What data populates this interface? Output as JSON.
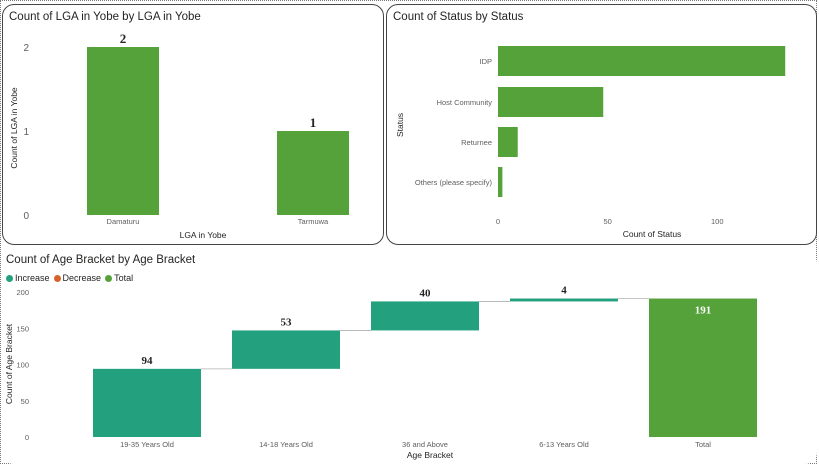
{
  "chart_data": [
    {
      "type": "bar",
      "title": "Count of LGA in Yobe by LGA in Yobe",
      "xlabel": "LGA in Yobe",
      "ylabel": "Count of LGA in Yobe",
      "categories": [
        "Damaturu",
        "Tarmuwa"
      ],
      "values": [
        2,
        1
      ],
      "data_labels": [
        "2",
        "1"
      ],
      "yticks": [
        "0",
        "1",
        "2"
      ],
      "ylim": [
        0,
        2
      ],
      "color": "#56a23a"
    },
    {
      "type": "bar",
      "orientation": "horizontal",
      "title": "Count of Status by Status",
      "xlabel": "Count of Status",
      "ylabel": "Status",
      "categories": [
        "IDP",
        "Host Community",
        "Returnee",
        "Others (please specify)"
      ],
      "values": [
        131,
        48,
        9,
        2
      ],
      "xticks": [
        "0",
        "50",
        "100"
      ],
      "xlim": [
        0,
        135
      ],
      "color": "#56a23a"
    },
    {
      "type": "waterfall",
      "title": "Count of Age Bracket by Age Bracket",
      "xlabel": "Age Bracket",
      "ylabel": "Count of Age Bracket",
      "legend": [
        {
          "name": "Increase",
          "color": "#23a17e"
        },
        {
          "name": "Decrease",
          "color": "#d9622b"
        },
        {
          "name": "Total",
          "color": "#56a23a"
        }
      ],
      "categories": [
        "19-35 Years Old",
        "14-18 Years Old",
        "36 and Above",
        "6-13 Years Old",
        "Total"
      ],
      "values": [
        94,
        53,
        40,
        4,
        191
      ],
      "kinds": [
        "increase",
        "increase",
        "increase",
        "increase",
        "total"
      ],
      "data_labels": [
        "94",
        "53",
        "40",
        "4",
        "191"
      ],
      "yticks": [
        "0",
        "50",
        "100",
        "150",
        "200"
      ],
      "ylim": [
        0,
        200
      ]
    }
  ]
}
